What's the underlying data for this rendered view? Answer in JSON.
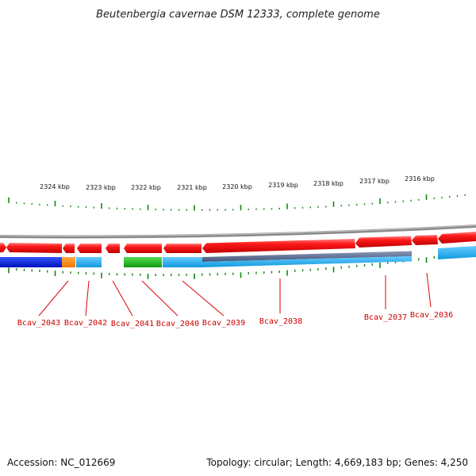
{
  "title": "Beutenbergia cavernae DSM 12333, complete genome",
  "scale_labels": [
    "2324 kbp",
    "2323 kbp",
    "2322 kbp",
    "2321 kbp",
    "2320 kbp",
    "2319 kbp",
    "2318 kbp",
    "2317 kbp",
    "2316 kbp"
  ],
  "gene_labels": [
    "Bcav_2043",
    "Bcav_2042",
    "Bcav_2041",
    "Bcav_2040",
    "Bcav_2039",
    "Bcav_2038",
    "Bcav_2037",
    "Bcav_2036"
  ],
  "colors": {
    "forward_cds": "#ee0000",
    "cog_blue": "#0022dd",
    "cog_orange": "#ff8800",
    "cog_cyan": "#22aaee",
    "cog_green": "#22bb22",
    "cog_slate": "#5577aa",
    "backbone": "#888888",
    "ticks": "#118811",
    "label": "#cc0000"
  },
  "footer": {
    "accession": "Accession: NC_012669",
    "topology": "Topology: circular; Length: 4,669,183 bp; Genes: 4,250"
  }
}
